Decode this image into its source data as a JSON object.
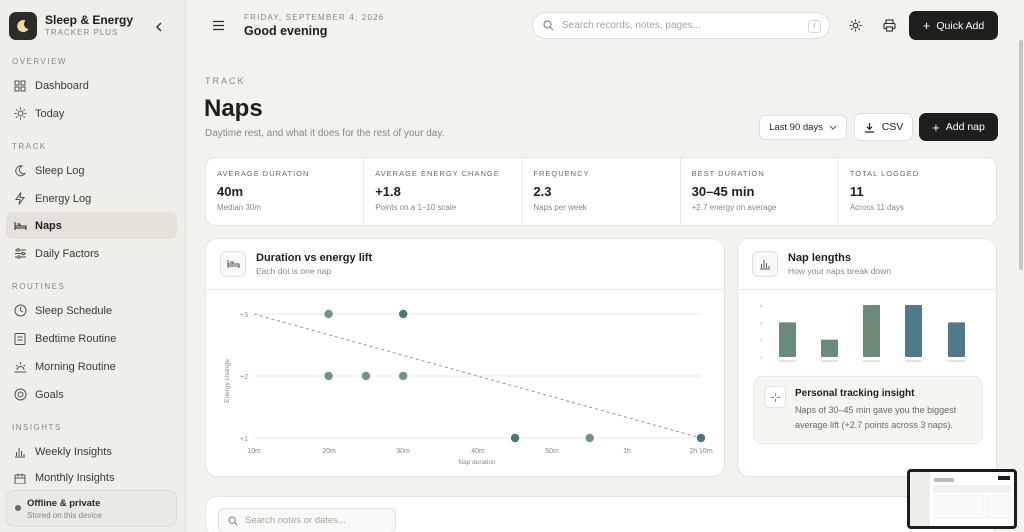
{
  "app": {
    "name": "Sleep & Energy",
    "tagline": "TRACKER PLUS"
  },
  "sidebar": {
    "sections": [
      {
        "title": "OVERVIEW",
        "items": [
          {
            "label": "Dashboard",
            "icon": "grid-icon"
          },
          {
            "label": "Today",
            "icon": "sun-icon"
          }
        ]
      },
      {
        "title": "TRACK",
        "items": [
          {
            "label": "Sleep Log",
            "icon": "moon-icon"
          },
          {
            "label": "Energy Log",
            "icon": "bolt-icon"
          },
          {
            "label": "Naps",
            "icon": "bed-icon",
            "active": true
          },
          {
            "label": "Daily Factors",
            "icon": "sliders-icon"
          }
        ]
      },
      {
        "title": "ROUTINES",
        "items": [
          {
            "label": "Sleep Schedule",
            "icon": "clock-icon"
          },
          {
            "label": "Bedtime Routine",
            "icon": "checklist-icon"
          },
          {
            "label": "Morning Routine",
            "icon": "sunrise-icon"
          },
          {
            "label": "Goals",
            "icon": "target-icon"
          }
        ]
      },
      {
        "title": "INSIGHTS",
        "items": [
          {
            "label": "Weekly Insights",
            "icon": "bar-chart-icon"
          },
          {
            "label": "Monthly Insights",
            "icon": "calendar-icon"
          }
        ]
      }
    ],
    "offline": {
      "title": "Offline & private",
      "subtitle": "Stored on this device"
    }
  },
  "header": {
    "date": "FRIDAY, SEPTEMBER 4, 2026",
    "greeting": "Good evening",
    "search_placeholder": "Search records, notes, pages...",
    "search_shortcut": "/",
    "quick_add": "Quick Add"
  },
  "page": {
    "eyebrow": "TRACK",
    "title": "Naps",
    "description": "Daytime rest, and what it does for the rest of your day.",
    "range": "Last 90 days",
    "csv": "CSV",
    "add": "Add nap"
  },
  "stats": [
    {
      "label": "AVERAGE DURATION",
      "value": "40m",
      "sub": "Median 30m"
    },
    {
      "label": "AVERAGE ENERGY CHANGE",
      "value": "+1.8",
      "sub": "Points on a 1–10 scale"
    },
    {
      "label": "FREQUENCY",
      "value": "2.3",
      "sub": "Naps per week"
    },
    {
      "label": "BEST DURATION",
      "value": "30–45 min",
      "sub": "+2.7 energy on average"
    },
    {
      "label": "TOTAL LOGGED",
      "value": "11",
      "sub": "Across 11 days"
    }
  ],
  "scatter_card": {
    "title": "Duration vs energy lift",
    "subtitle": "Each dot is one nap"
  },
  "lengths_card": {
    "title": "Nap lengths",
    "subtitle": "How your naps break down"
  },
  "insight": {
    "title": "Personal tracking insight",
    "text": "Naps of 30–45 min gave you the biggest average lift (+2.7 points across 3 naps)."
  },
  "notes": {
    "search_placeholder": "Search notes or dates..."
  },
  "colors": {
    "dot_green": "#6f9583",
    "dot_teal": "#4a7680",
    "bar_green": "#6b8a78",
    "bar_teal": "#4f7a88",
    "accent_dark": "#1e1e1c"
  },
  "chart_data": [
    {
      "type": "scatter",
      "title": "Duration vs energy lift",
      "xlabel": "Nap duration",
      "ylabel": "Energy change",
      "x_ticks": [
        "10m",
        "20m",
        "30m",
        "40m",
        "50m",
        "1h",
        "2h 10m"
      ],
      "y_ticks": [
        "+1",
        "+2",
        "+3"
      ],
      "ylim": [
        1,
        3
      ],
      "points": [
        {
          "x": "20m",
          "y": 3,
          "series": "green"
        },
        {
          "x": "30m",
          "y": 3,
          "series": "teal"
        },
        {
          "x": "20m",
          "y": 2,
          "series": "green"
        },
        {
          "x": "25m",
          "y": 2,
          "series": "green"
        },
        {
          "x": "30m",
          "y": 2,
          "series": "green"
        },
        {
          "x": "45m",
          "y": 1,
          "series": "teal"
        },
        {
          "x": "55m",
          "y": 1,
          "series": "green"
        },
        {
          "x": "2h 10m",
          "y": 1,
          "series": "teal"
        }
      ],
      "trendline": {
        "from": [
          "10m",
          3
        ],
        "to": [
          "2h 10m",
          1
        ]
      }
    },
    {
      "type": "bar",
      "title": "Nap lengths",
      "categories": [
        "",
        "",
        "",
        "",
        ""
      ],
      "values": [
        4,
        2,
        6,
        6,
        4
      ],
      "y_ticks": [
        "6",
        "4",
        "2",
        "0"
      ],
      "bar_series": [
        "green",
        "green",
        "green",
        "teal",
        "teal"
      ]
    }
  ]
}
